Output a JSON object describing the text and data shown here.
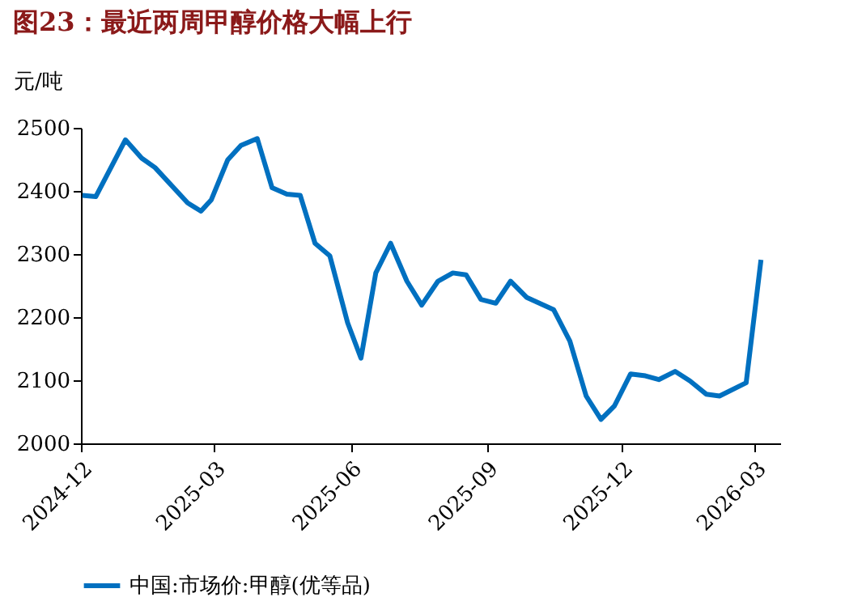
{
  "chart_data": {
    "type": "line",
    "title": "图23：最近两周甲醇价格大幅上行",
    "ylabel": "元/吨",
    "x": [
      "2024-12-02",
      "2024-12-11",
      "2024-12-31",
      "2025-01-11",
      "2025-01-20",
      "2025-02-11",
      "2025-02-20",
      "2025-02-27",
      "2025-03-10",
      "2025-03-19",
      "2025-03-30",
      "2025-04-09",
      "2025-04-19",
      "2025-04-28",
      "2025-05-08",
      "2025-05-18",
      "2025-05-30",
      "2025-06-08",
      "2025-06-18",
      "2025-06-28",
      "2025-07-09",
      "2025-07-19",
      "2025-07-30",
      "2025-08-09",
      "2025-08-18",
      "2025-08-28",
      "2025-09-07",
      "2025-09-17",
      "2025-09-28",
      "2025-10-16",
      "2025-10-27",
      "2025-11-07",
      "2025-11-17",
      "2025-11-26",
      "2025-12-07",
      "2025-12-17",
      "2025-12-26",
      "2026-01-06",
      "2026-01-16",
      "2026-01-27",
      "2026-02-05",
      "2026-02-23",
      "2026-03-05"
    ],
    "series": [
      {
        "name": "中国:市场价:甲醇(优等品)",
        "color": "#0070c0",
        "values": [
          2393,
          2391,
          2481,
          2452,
          2437,
          2381,
          2368,
          2386,
          2449,
          2472,
          2483,
          2405,
          2395,
          2393,
          2317,
          2297,
          2191,
          2135,
          2270,
          2317,
          2257,
          2219,
          2257,
          2270,
          2267,
          2228,
          2222,
          2257,
          2231,
          2212,
          2162,
          2075,
          2038,
          2059,
          2110,
          2107,
          2101,
          2114,
          2099,
          2078,
          2075,
          2096,
          2291
        ]
      }
    ],
    "xlim": [
      "2024-12-01",
      "2026-03-18"
    ],
    "xticks": [
      "2024-12",
      "2025-03",
      "2025-06",
      "2025-09",
      "2025-12",
      "2026-03"
    ],
    "ylim": [
      2000,
      2500
    ],
    "yticks": [
      2000,
      2100,
      2200,
      2300,
      2400,
      2500
    ],
    "grid": false,
    "legend": "bottom",
    "line_style": "solid"
  }
}
